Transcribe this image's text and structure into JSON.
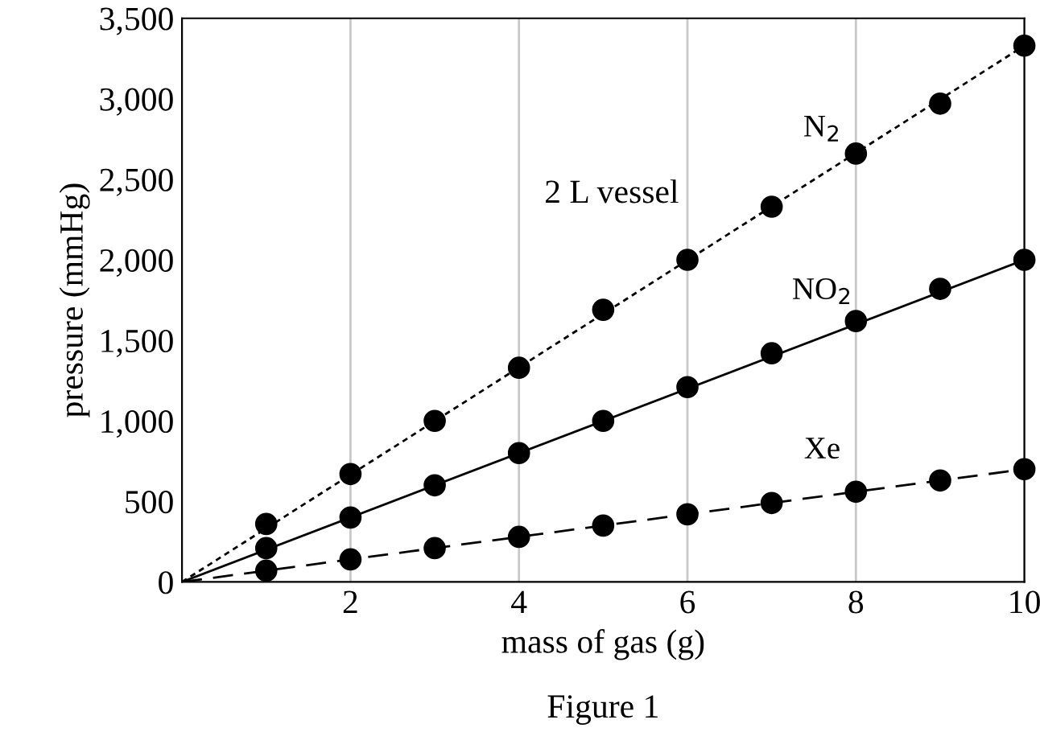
{
  "chart_data": {
    "type": "scatter",
    "xlabel": "mass of gas (g)",
    "ylabel": "pressure (mmHg)",
    "xlim": [
      0,
      10
    ],
    "ylim": [
      0,
      3500
    ],
    "xticks": [
      2,
      4,
      6,
      8,
      10
    ],
    "yticks": [
      0,
      500,
      {
        "value": 1000,
        "label": "1,000"
      },
      {
        "value": 1500,
        "label": "1,500"
      },
      {
        "value": 2000,
        "label": "2,000"
      },
      {
        "value": 2500,
        "label": "2,500"
      },
      {
        "value": 3000,
        "label": "3,000"
      },
      {
        "value": 3500,
        "label": "3,500"
      }
    ],
    "grid": "x",
    "marker": "circle",
    "series": [
      {
        "type": "line",
        "name": "N$_{2}$",
        "color": "#000000",
        "line_style": "dotted",
        "marker": "none",
        "x": [
          0,
          10
        ],
        "values": [
          0,
          3330
        ]
      },
      {
        "type": "line",
        "name": "NO$_{2}$",
        "color": "#000000",
        "line_style": "solid",
        "marker": "none",
        "x": [
          0,
          10
        ],
        "values": [
          0,
          2000
        ]
      },
      {
        "type": "line",
        "name": "Xe",
        "color": "#000000",
        "line_style": "dashed",
        "marker": "none",
        "x": [
          0,
          10
        ],
        "values": [
          0,
          700
        ]
      },
      {
        "color": "#000000",
        "x": [
          1,
          2,
          3,
          4,
          5,
          6,
          7,
          8,
          9,
          10
        ],
        "values": [
          360,
          670,
          1000,
          1330,
          1690,
          2000,
          2330,
          2660,
          2970,
          3330
        ]
      },
      {
        "color": "#000000",
        "x": [
          1,
          2,
          3,
          4,
          5,
          6,
          7,
          8,
          9,
          10
        ],
        "values": [
          210,
          400,
          600,
          800,
          1000,
          1210,
          1420,
          1620,
          1820,
          2000
        ]
      },
      {
        "color": "#000000",
        "x": [
          1,
          2,
          3,
          4,
          5,
          6,
          7,
          8,
          9,
          10
        ],
        "values": [
          70,
          140,
          210,
          280,
          350,
          420,
          490,
          560,
          630,
          700
        ]
      }
    ],
    "annotations": [
      "2 L vessel",
      "Figure 1"
    ]
  }
}
